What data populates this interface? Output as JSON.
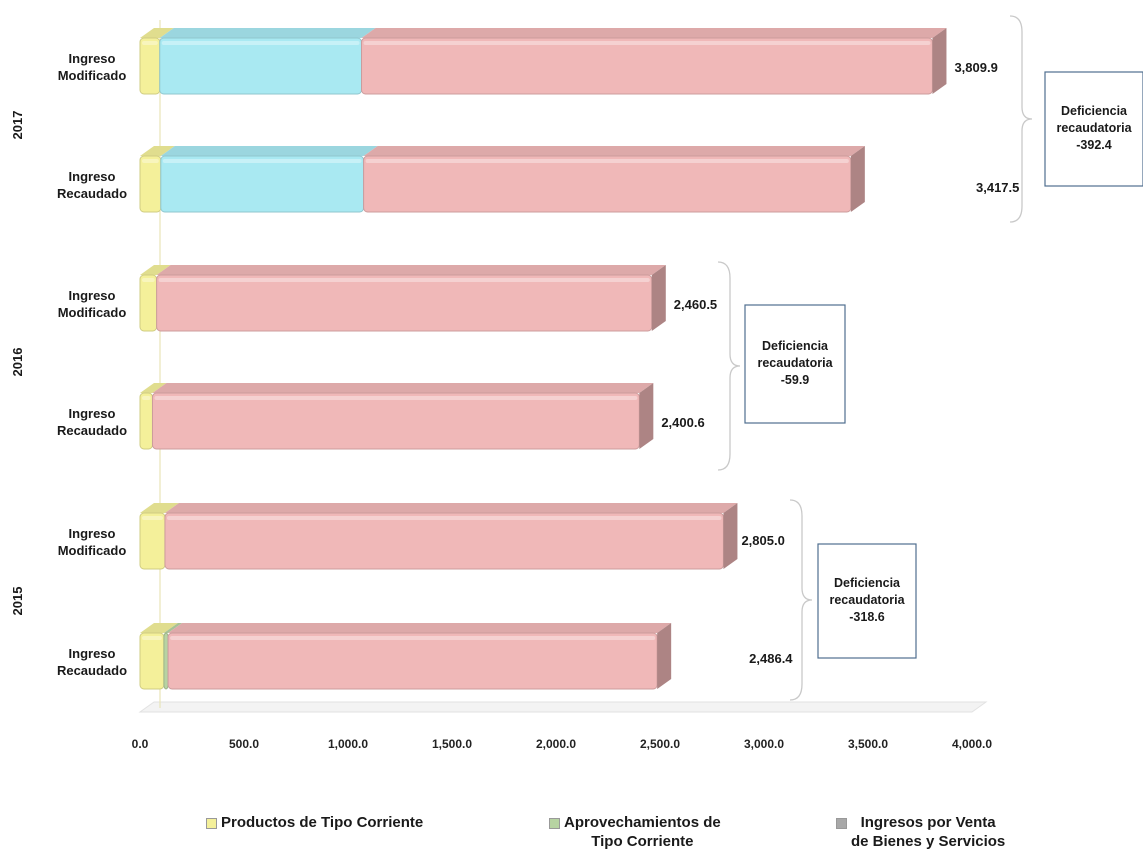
{
  "chart_data": {
    "type": "bar",
    "orientation": "horizontal",
    "stacked": true,
    "groups": [
      {
        "year": "2017",
        "deficiency": {
          "line1": "Deficiencia",
          "line2": "recaudatoria",
          "value": "-392.4"
        },
        "rows": [
          {
            "label1": "Ingreso",
            "label2": "Modificado",
            "total_label": "3,809.9",
            "total": 3809.9,
            "segments": {
              "productos": 95,
              "aprovechamientos": 0,
              "ingresos_venta": 0,
              "transferencias": 970,
              "resto": 2744.9
            }
          },
          {
            "label1": "Ingreso",
            "label2": "Recaudado",
            "total_label": "3,417.5",
            "total": 3417.5,
            "segments": {
              "productos": 100,
              "aprovechamientos": 0,
              "ingresos_venta": 0,
              "transferencias": 975,
              "resto": 2342.5
            }
          }
        ]
      },
      {
        "year": "2016",
        "deficiency": {
          "line1": "Deficiencia",
          "line2": "recaudatoria",
          "value": "-59.9"
        },
        "rows": [
          {
            "label1": "Ingreso",
            "label2": "Modificado",
            "total_label": "2,460.5",
            "total": 2460.5,
            "segments": {
              "productos": 80,
              "aprovechamientos": 0,
              "ingresos_venta": 0,
              "transferencias": 0,
              "resto": 2380.5
            }
          },
          {
            "label1": "Ingreso",
            "label2": "Recaudado",
            "total_label": "2,400.6",
            "total": 2400.6,
            "segments": {
              "productos": 60,
              "aprovechamientos": 0,
              "ingresos_venta": 0,
              "transferencias": 0,
              "resto": 2340.6
            }
          }
        ]
      },
      {
        "year": "2015",
        "deficiency": {
          "line1": "Deficiencia",
          "line2": "recaudatoria",
          "value": "-318.6"
        },
        "rows": [
          {
            "label1": "Ingreso",
            "label2": "Modificado",
            "total_label": "2,805.0",
            "total": 2805.0,
            "segments": {
              "productos": 120,
              "aprovechamientos": 0,
              "ingresos_venta": 0,
              "transferencias": 0,
              "resto": 2685.0
            }
          },
          {
            "label1": "Ingreso",
            "label2": "Recaudado",
            "total_label": "2,486.4",
            "total": 2486.4,
            "segments": {
              "productos": 115,
              "aprovechamientos": 20,
              "ingresos_venta": 0,
              "transferencias": 0,
              "resto": 2351.4
            }
          }
        ]
      }
    ],
    "xlim": [
      0,
      4000
    ],
    "xticks": [
      {
        "value": 0,
        "label": "0.0"
      },
      {
        "value": 500,
        "label": "500.0"
      },
      {
        "value": 1000,
        "label": "1,000.0"
      },
      {
        "value": 1500,
        "label": "1,500.0"
      },
      {
        "value": 2000,
        "label": "2,000.0"
      },
      {
        "value": 2500,
        "label": "2,500.0"
      },
      {
        "value": 3000,
        "label": "3,000.0"
      },
      {
        "value": 3500,
        "label": "3,500.0"
      },
      {
        "value": 4000,
        "label": "4,000.0"
      }
    ],
    "colors": {
      "productos": "#f4f09a",
      "aprovechamientos": "#b7d3a2",
      "ingresos_venta": "#a8a8a8",
      "transferencias": "#a9e9f2",
      "resto": "#f0b8b8"
    },
    "legend": [
      {
        "key": "productos",
        "line1": "Productos de Tipo Corriente",
        "line2": ""
      },
      {
        "key": "aprovechamientos",
        "line1": "Aprovechamientos de",
        "line2": "Tipo Corriente"
      },
      {
        "key": "ingresos_venta",
        "line1": "Ingresos por Venta",
        "line2": "de Bienes y Servicios"
      }
    ],
    "legend_position": "bottom",
    "grid": false
  }
}
